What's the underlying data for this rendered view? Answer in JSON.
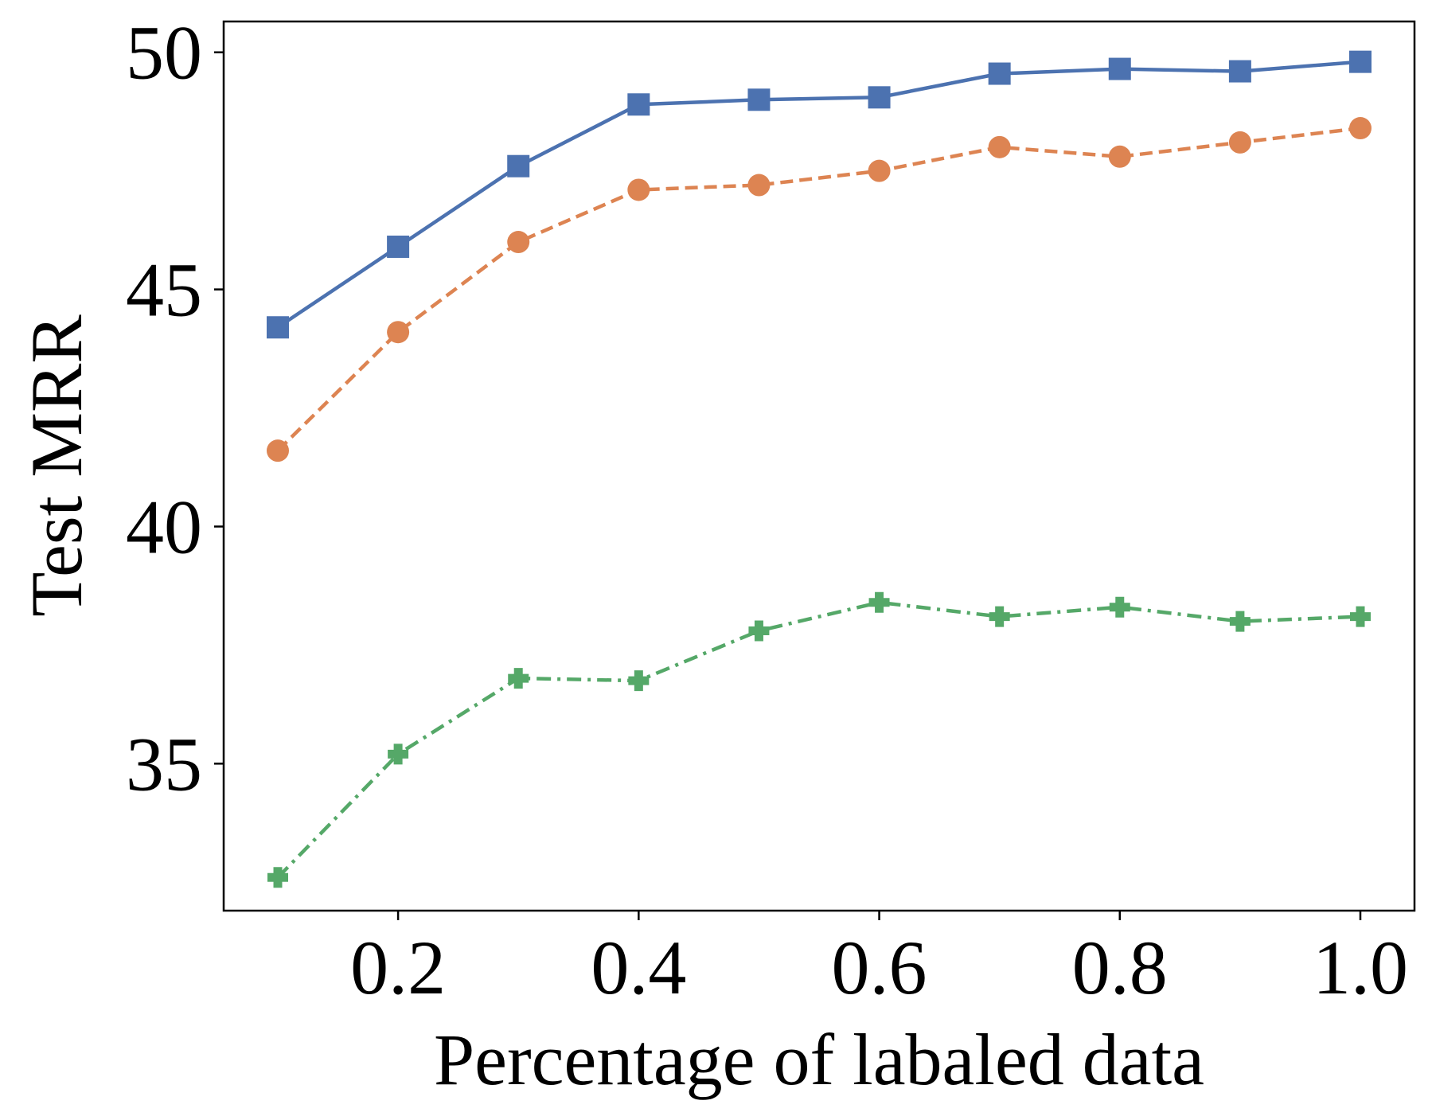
{
  "chart_data": {
    "type": "line",
    "title": "",
    "xlabel": "Percentage of labaled data",
    "ylabel": "Test MRR",
    "xlim": [
      0.055,
      1.045
    ],
    "ylim": [
      31.9,
      50.65
    ],
    "x_ticks": [
      0.2,
      0.4,
      0.6,
      0.8,
      1.0
    ],
    "x_tick_labels": [
      "0.2",
      "0.4",
      "0.6",
      "0.8",
      "1.0"
    ],
    "y_ticks": [
      35,
      40,
      45,
      50
    ],
    "y_tick_labels": [
      "35",
      "40",
      "45",
      "50"
    ],
    "grid": false,
    "legend": false,
    "x": [
      0.1,
      0.2,
      0.3,
      0.4,
      0.5,
      0.6,
      0.7,
      0.8,
      0.9,
      1.0
    ],
    "series": [
      {
        "values": [
          44.2,
          45.9,
          47.6,
          48.9,
          49.0,
          49.05,
          49.55,
          49.65,
          49.6,
          49.8
        ],
        "color": "#4c72b0",
        "marker": "square",
        "line_style": "solid"
      },
      {
        "values": [
          41.6,
          44.1,
          46.0,
          47.1,
          47.2,
          47.5,
          48.0,
          47.8,
          48.1,
          48.4
        ],
        "color": "#dd8452",
        "marker": "circle",
        "line_style": "dashed"
      },
      {
        "values": [
          32.6,
          35.2,
          36.8,
          36.75,
          37.8,
          38.4,
          38.1,
          38.3,
          38.0,
          38.1
        ],
        "color": "#55a868",
        "marker": "plus",
        "line_style": "dashdot"
      }
    ]
  }
}
